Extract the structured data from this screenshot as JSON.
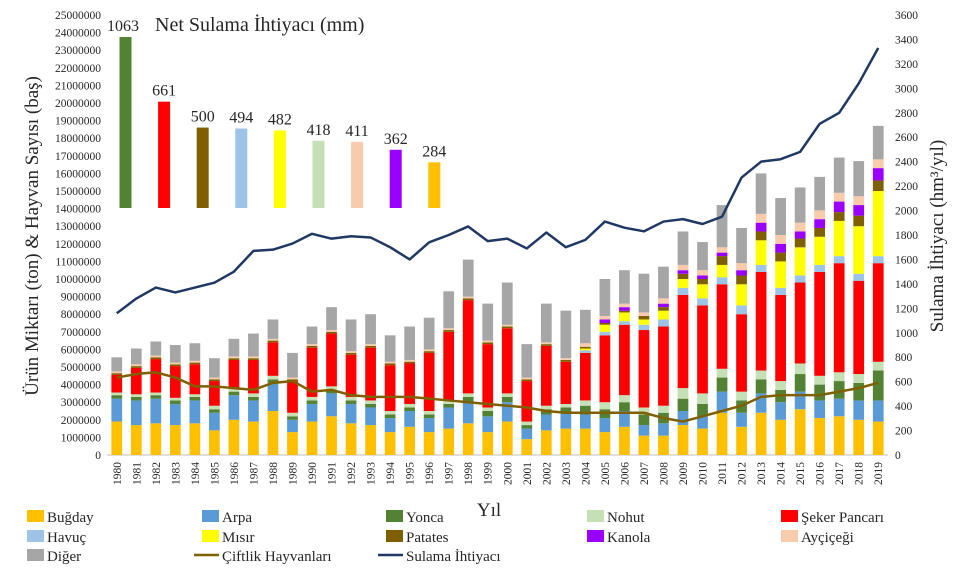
{
  "chart_data": {
    "type": "bar",
    "stacked": true,
    "title": "",
    "xlabel": "Yıl",
    "ylabel": "Ürün Miktarı (ton) & Hayvan Sayısı (baş)",
    "y2label": "Sulama İhtiyacı (hm³/yıl)",
    "ylim": [
      0,
      25000000
    ],
    "y2lim": [
      0,
      3600
    ],
    "yticks": [
      "0",
      "1000000",
      "2000000",
      "3000000",
      "4000000",
      "5000000",
      "6000000",
      "7000000",
      "8000000",
      "9000000",
      "10000000",
      "11000000",
      "12000000",
      "13000000",
      "14000000",
      "15000000",
      "16000000",
      "17000000",
      "18000000",
      "19000000",
      "20000000",
      "21000000",
      "22000000",
      "23000000",
      "24000000",
      "25000000"
    ],
    "y2ticks": [
      "0",
      "200",
      "400",
      "600",
      "800",
      "1000",
      "1200",
      "1400",
      "1600",
      "1800",
      "2000",
      "2200",
      "2400",
      "2600",
      "2800",
      "3000",
      "3200",
      "3400",
      "3600"
    ],
    "categories": [
      "1980",
      "1981",
      "1982",
      "1983",
      "1984",
      "1985",
      "1986",
      "1987",
      "1988",
      "1989",
      "1990",
      "1991",
      "1992",
      "1993",
      "1994",
      "1995",
      "1996",
      "1997",
      "1998",
      "1999",
      "2000",
      "2001",
      "2002",
      "2003",
      "2004",
      "2005",
      "2006",
      "2007",
      "2008",
      "2009",
      "2010",
      "2011",
      "2012",
      "2013",
      "2014",
      "2015",
      "2016",
      "2017",
      "2018",
      "2019"
    ],
    "series": [
      {
        "name": "Buğday",
        "color": "#FFC000",
        "values": [
          1900000,
          1700000,
          1800000,
          1700000,
          1800000,
          1400000,
          2000000,
          1900000,
          2500000,
          1300000,
          1900000,
          2200000,
          1800000,
          1700000,
          1300000,
          1600000,
          1300000,
          1500000,
          1800000,
          1300000,
          1900000,
          900000,
          1400000,
          1500000,
          1500000,
          1300000,
          1600000,
          1100000,
          1100000,
          1700000,
          1500000,
          2400000,
          1600000,
          2400000,
          2000000,
          2600000,
          2100000,
          2200000,
          2000000,
          1900000
        ]
      },
      {
        "name": "Arpa",
        "color": "#5B9BD5",
        "values": [
          1300000,
          1400000,
          1400000,
          1200000,
          1300000,
          1000000,
          1400000,
          1200000,
          1600000,
          700000,
          1000000,
          1300000,
          1100000,
          1000000,
          800000,
          900000,
          800000,
          1200000,
          1200000,
          900000,
          1100000,
          600000,
          900000,
          900000,
          800000,
          800000,
          900000,
          600000,
          700000,
          800000,
          700000,
          1200000,
          800000,
          1100000,
          1000000,
          1000000,
          1000000,
          1000000,
          1100000,
          1200000
        ]
      },
      {
        "name": "Yonca",
        "color": "#548235",
        "values": [
          200000,
          200000,
          200000,
          200000,
          200000,
          200000,
          200000,
          200000,
          200000,
          200000,
          200000,
          200000,
          200000,
          200000,
          200000,
          200000,
          200000,
          200000,
          300000,
          300000,
          300000,
          200000,
          300000,
          300000,
          500000,
          500000,
          500000,
          600000,
          600000,
          700000,
          700000,
          800000,
          700000,
          800000,
          700000,
          1000000,
          900000,
          1000000,
          1000000,
          1700000
        ]
      },
      {
        "name": "Nohut",
        "color": "#C5E0B4",
        "values": [
          150000,
          150000,
          150000,
          150000,
          150000,
          200000,
          200000,
          200000,
          200000,
          200000,
          200000,
          200000,
          200000,
          200000,
          200000,
          200000,
          200000,
          200000,
          200000,
          200000,
          200000,
          200000,
          200000,
          200000,
          300000,
          400000,
          400000,
          400000,
          400000,
          600000,
          600000,
          500000,
          500000,
          500000,
          500000,
          600000,
          500000,
          500000,
          500000,
          500000
        ]
      },
      {
        "name": "Şeker Pancarı",
        "color": "#FF0000",
        "values": [
          1000000,
          1500000,
          1900000,
          1800000,
          1700000,
          1400000,
          1600000,
          1900000,
          1900000,
          1800000,
          2800000,
          3000000,
          2400000,
          3000000,
          2600000,
          2300000,
          3300000,
          3900000,
          5300000,
          3600000,
          3700000,
          2300000,
          3400000,
          2400000,
          2700000,
          3800000,
          4000000,
          4400000,
          4500000,
          5300000,
          5000000,
          4800000,
          4400000,
          5600000,
          4900000,
          4600000,
          5900000,
          6200000,
          5300000,
          5600000
        ]
      },
      {
        "name": "Havuç",
        "color": "#9DC3E6",
        "values": [
          0,
          0,
          0,
          0,
          0,
          0,
          0,
          0,
          0,
          0,
          0,
          0,
          0,
          0,
          0,
          0,
          0,
          0,
          0,
          0,
          0,
          0,
          0,
          0,
          150000,
          200000,
          200000,
          300000,
          400000,
          400000,
          400000,
          400000,
          500000,
          400000,
          400000,
          400000,
          400000,
          400000,
          400000,
          400000
        ]
      },
      {
        "name": "Mısır",
        "color": "#FFFF00",
        "values": [
          0,
          0,
          0,
          0,
          0,
          0,
          0,
          0,
          0,
          0,
          0,
          0,
          0,
          0,
          0,
          0,
          0,
          0,
          0,
          0,
          0,
          0,
          0,
          0,
          100000,
          400000,
          500000,
          300000,
          500000,
          500000,
          800000,
          700000,
          1200000,
          1400000,
          1500000,
          1600000,
          1600000,
          2000000,
          2700000,
          3700000
        ]
      },
      {
        "name": "Patates",
        "color": "#7F6000",
        "values": [
          100000,
          100000,
          100000,
          100000,
          100000,
          100000,
          100000,
          100000,
          100000,
          100000,
          100000,
          100000,
          100000,
          100000,
          100000,
          100000,
          100000,
          100000,
          100000,
          100000,
          100000,
          100000,
          100000,
          100000,
          100000,
          100000,
          100000,
          200000,
          200000,
          300000,
          300000,
          500000,
          500000,
          500000,
          500000,
          500000,
          500000,
          500000,
          600000,
          600000
        ]
      },
      {
        "name": "Kanola",
        "color": "#9900FF",
        "values": [
          0,
          0,
          0,
          0,
          0,
          0,
          0,
          0,
          0,
          0,
          0,
          0,
          0,
          0,
          0,
          0,
          0,
          0,
          0,
          0,
          0,
          0,
          0,
          0,
          0,
          200000,
          200000,
          0,
          200000,
          200000,
          200000,
          200000,
          300000,
          500000,
          500000,
          400000,
          500000,
          600000,
          600000,
          700000
        ]
      },
      {
        "name": "Ayçiçeği",
        "color": "#F8CBAD",
        "values": [
          100000,
          100000,
          100000,
          100000,
          100000,
          100000,
          100000,
          100000,
          100000,
          100000,
          100000,
          100000,
          100000,
          100000,
          100000,
          100000,
          100000,
          100000,
          100000,
          100000,
          100000,
          100000,
          100000,
          100000,
          200000,
          200000,
          200000,
          200000,
          300000,
          300000,
          300000,
          300000,
          400000,
          500000,
          500000,
          500000,
          500000,
          500000,
          500000,
          500000
        ]
      },
      {
        "name": "Diğer",
        "color": "#A6A6A6",
        "values": [
          800000,
          900000,
          800000,
          1000000,
          1000000,
          1100000,
          1000000,
          1300000,
          1100000,
          1400000,
          1000000,
          1300000,
          1800000,
          1700000,
          1500000,
          1900000,
          1800000,
          2100000,
          2100000,
          2100000,
          2400000,
          1900000,
          2200000,
          2700000,
          1900000,
          2100000,
          1900000,
          2200000,
          1800000,
          1900000,
          1600000,
          2400000,
          2000000,
          2300000,
          2100000,
          2000000,
          1900000,
          2000000,
          2000000,
          1900000
        ]
      }
    ],
    "lines": [
      {
        "name": "Çiftlik Hayvanları",
        "color": "#7F6000",
        "axis": "primary",
        "values": [
          4400000,
          4600000,
          4700000,
          4400000,
          3900000,
          3900000,
          3800000,
          3700000,
          4100000,
          4200000,
          3600000,
          3700000,
          3400000,
          3300000,
          3300000,
          3300000,
          3200000,
          3100000,
          3000000,
          2900000,
          2800000,
          2700000,
          2500000,
          2400000,
          2400000,
          2400000,
          2400000,
          2400000,
          2100000,
          1900000,
          2200000,
          2500000,
          2800000,
          3300000,
          3400000,
          3400000,
          3400000,
          3600000,
          3800000,
          4100000
        ]
      },
      {
        "name": "Sulama İhtiyacı",
        "color": "#1F3864",
        "axis": "secondary",
        "values": [
          1160,
          1280,
          1370,
          1330,
          1370,
          1410,
          1500,
          1670,
          1680,
          1730,
          1810,
          1770,
          1790,
          1780,
          1700,
          1600,
          1740,
          1800,
          1870,
          1750,
          1770,
          1690,
          1820,
          1700,
          1760,
          1910,
          1860,
          1830,
          1910,
          1930,
          1890,
          1950,
          2270,
          2400,
          2420,
          2480,
          2710,
          2800,
          3040,
          3330
        ]
      }
    ],
    "inset": {
      "title": "Net Sulama İhtiyacı (mm)",
      "bars": [
        {
          "label": "1063",
          "value": 1063,
          "color": "#548235"
        },
        {
          "label": "661",
          "value": 661,
          "color": "#FF0000"
        },
        {
          "label": "500",
          "value": 500,
          "color": "#7F6000"
        },
        {
          "label": "494",
          "value": 494,
          "color": "#9DC3E6"
        },
        {
          "label": "482",
          "value": 482,
          "color": "#FFFF00"
        },
        {
          "label": "418",
          "value": 418,
          "color": "#C5E0B4"
        },
        {
          "label": "411",
          "value": 411,
          "color": "#F8CBAD"
        },
        {
          "label": "362",
          "value": 362,
          "color": "#9900FF"
        },
        {
          "label": "284",
          "value": 284,
          "color": "#FFC000"
        }
      ]
    },
    "legend": [
      {
        "name": "Buğday",
        "kind": "bar",
        "color": "#FFC000"
      },
      {
        "name": "Arpa",
        "kind": "bar",
        "color": "#5B9BD5"
      },
      {
        "name": "Yonca",
        "kind": "bar",
        "color": "#548235"
      },
      {
        "name": "Nohut",
        "kind": "bar",
        "color": "#C5E0B4"
      },
      {
        "name": "Şeker Pancarı",
        "kind": "bar",
        "color": "#FF0000"
      },
      {
        "name": "Havuç",
        "kind": "bar",
        "color": "#9DC3E6"
      },
      {
        "name": "Mısır",
        "kind": "bar",
        "color": "#FFFF00"
      },
      {
        "name": "Patates",
        "kind": "bar",
        "color": "#7F6000"
      },
      {
        "name": "Kanola",
        "kind": "bar",
        "color": "#9900FF"
      },
      {
        "name": "Ayçiçeği",
        "kind": "bar",
        "color": "#F8CBAD"
      },
      {
        "name": "Diğer",
        "kind": "bar",
        "color": "#A6A6A6"
      },
      {
        "name": "Çiftlik Hayvanları",
        "kind": "line",
        "color": "#7F6000"
      },
      {
        "name": "Sulama İhtiyacı",
        "kind": "line",
        "color": "#1F3864"
      }
    ],
    "grid": false,
    "legend_position": "bottom"
  }
}
